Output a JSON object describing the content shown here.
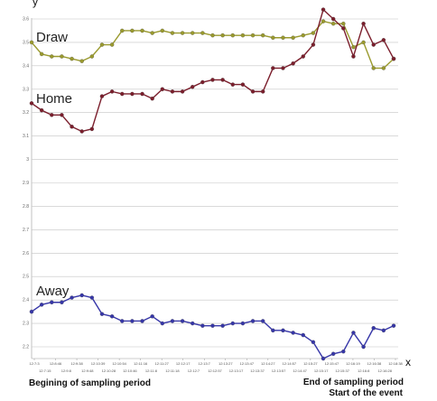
{
  "chart_data": {
    "type": "line",
    "title": "",
    "xlabel": "x",
    "ylabel": "y",
    "ylim": [
      2.15,
      3.65
    ],
    "yticks": [
      "2.2",
      "2.3",
      "2.4",
      "2.5",
      "2.6",
      "2.7",
      "2.8",
      "2.9",
      "3",
      "3.1",
      "3.2",
      "3.3",
      "3.4",
      "3.5",
      "3.6"
    ],
    "grid": true,
    "x_tick_labels_top": [
      "12:7:3",
      "12:8:46",
      "12:9:38",
      "12:10:39",
      "12:10:54",
      "12:11:16",
      "12:11:27",
      "12:12:17",
      "12:13:7",
      "12:13:27",
      "12:13:47",
      "12:14:27",
      "12:14:57",
      "12:15:27",
      "12:15:47",
      "12:16:19",
      "12:16:38",
      "12:18:38"
    ],
    "x_tick_labels_bottom": [
      "12:7:15",
      "12:9:8",
      "12:9:48",
      "12:10:28",
      "12:10:46",
      "12:11:8",
      "12:11:18",
      "12:12:7",
      "12:12:57",
      "12:13:17",
      "12:13:37",
      "12:13:57",
      "12:14:47",
      "12:15:17",
      "12:15:37",
      "12:16:8",
      "12:16:28",
      "12:16:48"
    ],
    "series": [
      {
        "name": "Draw",
        "color": "#9a9a2e",
        "values": [
          3.5,
          3.45,
          3.44,
          3.44,
          3.43,
          3.42,
          3.44,
          3.49,
          3.49,
          3.55,
          3.55,
          3.55,
          3.54,
          3.55,
          3.54,
          3.54,
          3.54,
          3.54,
          3.53,
          3.53,
          3.53,
          3.53,
          3.53,
          3.53,
          3.52,
          3.52,
          3.52,
          3.53,
          3.54,
          3.59,
          3.58,
          3.58,
          3.48,
          3.5,
          3.39,
          3.39,
          3.43
        ]
      },
      {
        "name": "Home",
        "color": "#7b1e2c",
        "values": [
          3.24,
          3.21,
          3.19,
          3.19,
          3.14,
          3.12,
          3.13,
          3.27,
          3.29,
          3.28,
          3.28,
          3.28,
          3.26,
          3.3,
          3.29,
          3.29,
          3.31,
          3.33,
          3.34,
          3.34,
          3.32,
          3.32,
          3.29,
          3.29,
          3.39,
          3.39,
          3.41,
          3.44,
          3.49,
          3.64,
          3.6,
          3.56,
          3.44,
          3.58,
          3.49,
          3.51,
          3.43
        ]
      },
      {
        "name": "Away",
        "color": "#3636a8",
        "values": [
          2.35,
          2.38,
          2.39,
          2.39,
          2.41,
          2.42,
          2.41,
          2.34,
          2.33,
          2.31,
          2.31,
          2.31,
          2.33,
          2.3,
          2.31,
          2.31,
          2.3,
          2.29,
          2.29,
          2.29,
          2.3,
          2.3,
          2.31,
          2.31,
          2.27,
          2.27,
          2.26,
          2.25,
          2.22,
          2.15,
          2.17,
          2.18,
          2.26,
          2.2,
          2.28,
          2.27,
          2.29
        ]
      }
    ]
  },
  "captions": {
    "begin": "Begining of sampling period",
    "end": "End of sampling period",
    "start": "Start of the event"
  }
}
